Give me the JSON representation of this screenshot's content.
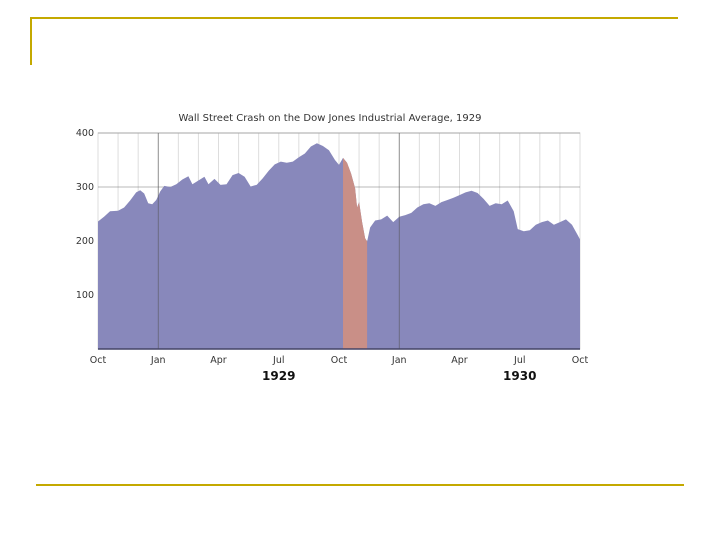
{
  "colors": {
    "accent_rule": "#c4a900",
    "area_fill": "#8888bb",
    "crash_fill": "#c98f87",
    "grid_light": "#dddddd",
    "grid_dark": "#555555",
    "baseline": "#444466"
  },
  "chart_data": {
    "type": "area",
    "title": "Wall Street Crash on the Dow Jones Industrial Average, 1929",
    "xlabel": "",
    "ylabel": "",
    "ylim": [
      0,
      400
    ],
    "yticks": [
      100,
      200,
      300,
      400
    ],
    "xlim": [
      0,
      24
    ],
    "x_unit": "months since Oct 1928",
    "xticks": [
      {
        "x": 0,
        "label": "Oct"
      },
      {
        "x": 3,
        "label": "Jan"
      },
      {
        "x": 6,
        "label": "Apr"
      },
      {
        "x": 9,
        "label": "Jul"
      },
      {
        "x": 12,
        "label": "Oct"
      },
      {
        "x": 15,
        "label": "Jan"
      },
      {
        "x": 18,
        "label": "Apr"
      },
      {
        "x": 21,
        "label": "Jul"
      },
      {
        "x": 24,
        "label": "Oct"
      }
    ],
    "year_labels": [
      {
        "x": 9,
        "label": "1929"
      },
      {
        "x": 21,
        "label": "1930"
      }
    ],
    "year_dividers": [
      3,
      15
    ],
    "grid": true,
    "crash_period": [
      12.2,
      13.4
    ],
    "series": [
      {
        "name": "Dow Jones Industrial Average",
        "points": [
          [
            0.0,
            236
          ],
          [
            0.3,
            245
          ],
          [
            0.6,
            255
          ],
          [
            1.0,
            256
          ],
          [
            1.3,
            262
          ],
          [
            1.6,
            275
          ],
          [
            1.9,
            290
          ],
          [
            2.1,
            294
          ],
          [
            2.3,
            288
          ],
          [
            2.5,
            270
          ],
          [
            2.7,
            268
          ],
          [
            2.9,
            276
          ],
          [
            3.1,
            292
          ],
          [
            3.3,
            302
          ],
          [
            3.6,
            300
          ],
          [
            3.9,
            305
          ],
          [
            4.2,
            314
          ],
          [
            4.5,
            320
          ],
          [
            4.7,
            305
          ],
          [
            5.0,
            312
          ],
          [
            5.3,
            319
          ],
          [
            5.5,
            305
          ],
          [
            5.8,
            315
          ],
          [
            6.1,
            304
          ],
          [
            6.4,
            305
          ],
          [
            6.7,
            322
          ],
          [
            7.0,
            326
          ],
          [
            7.3,
            319
          ],
          [
            7.6,
            301
          ],
          [
            7.9,
            304
          ],
          [
            8.2,
            316
          ],
          [
            8.5,
            330
          ],
          [
            8.8,
            342
          ],
          [
            9.1,
            347
          ],
          [
            9.4,
            345
          ],
          [
            9.7,
            347
          ],
          [
            10.0,
            355
          ],
          [
            10.3,
            362
          ],
          [
            10.6,
            375
          ],
          [
            10.9,
            381
          ],
          [
            11.2,
            376
          ],
          [
            11.5,
            368
          ],
          [
            11.8,
            350
          ],
          [
            12.0,
            341
          ],
          [
            12.2,
            354
          ],
          [
            12.4,
            345
          ],
          [
            12.6,
            325
          ],
          [
            12.8,
            298
          ],
          [
            12.9,
            262
          ],
          [
            13.0,
            272
          ],
          [
            13.15,
            235
          ],
          [
            13.3,
            205
          ],
          [
            13.4,
            199
          ],
          [
            13.55,
            225
          ],
          [
            13.8,
            238
          ],
          [
            14.1,
            240
          ],
          [
            14.4,
            247
          ],
          [
            14.7,
            235
          ],
          [
            15.0,
            245
          ],
          [
            15.3,
            248
          ],
          [
            15.6,
            252
          ],
          [
            15.9,
            262
          ],
          [
            16.2,
            268
          ],
          [
            16.5,
            270
          ],
          [
            16.8,
            265
          ],
          [
            17.1,
            272
          ],
          [
            17.4,
            276
          ],
          [
            17.7,
            280
          ],
          [
            18.0,
            285
          ],
          [
            18.3,
            290
          ],
          [
            18.6,
            293
          ],
          [
            18.9,
            289
          ],
          [
            19.2,
            278
          ],
          [
            19.5,
            265
          ],
          [
            19.8,
            270
          ],
          [
            20.1,
            268
          ],
          [
            20.4,
            275
          ],
          [
            20.7,
            255
          ],
          [
            20.9,
            222
          ],
          [
            21.2,
            218
          ],
          [
            21.5,
            220
          ],
          [
            21.8,
            230
          ],
          [
            22.1,
            235
          ],
          [
            22.4,
            238
          ],
          [
            22.7,
            230
          ],
          [
            23.0,
            235
          ],
          [
            23.3,
            240
          ],
          [
            23.6,
            230
          ],
          [
            23.9,
            210
          ],
          [
            24.0,
            203
          ]
        ]
      }
    ]
  }
}
